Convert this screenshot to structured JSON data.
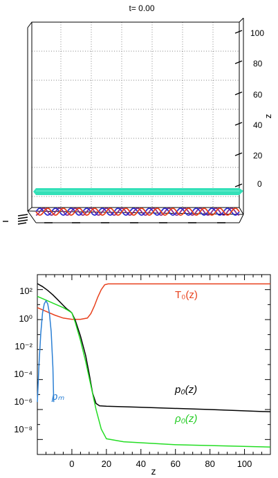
{
  "top_panel": {
    "time_label": "t=   0.00",
    "z_axis_label": "z",
    "z_ticks": [
      "0",
      "20",
      "40",
      "60",
      "80",
      "100"
    ],
    "colors": {
      "slab": "#33e0b8",
      "helix_red": "#e8401c",
      "helix_blue": "#3030d0",
      "helix_purple": "#8a2a8a"
    }
  },
  "chart_data": {
    "type": "line",
    "xlabel": "z",
    "xlim": [
      -20,
      115
    ],
    "ylim_log10": [
      -9,
      3
    ],
    "yscale": "log",
    "x_ticks": [
      0,
      20,
      40,
      60,
      80,
      100
    ],
    "x_tick_labels": [
      "0",
      "20",
      "40",
      "60",
      "80",
      "100"
    ],
    "y_ticks_log10": [
      2,
      0,
      -2,
      -4,
      -6,
      -8
    ],
    "y_tick_labels": [
      "10²",
      "10⁰",
      "10⁻²",
      "10⁻⁴",
      "10⁻⁶",
      "10⁻⁸"
    ],
    "series": [
      {
        "name": "T₀(z)",
        "color": "#e8401c",
        "x": [
          -20,
          -15,
          -10,
          -5,
          0,
          5,
          9,
          11,
          13,
          15,
          17,
          19,
          21,
          30,
          60,
          115
        ],
        "log10_y": [
          0.8,
          0.55,
          0.3,
          0.1,
          0.02,
          0.02,
          0.1,
          0.4,
          0.9,
          1.5,
          2.0,
          2.32,
          2.38,
          2.38,
          2.38,
          2.38
        ]
      },
      {
        "name": "p₀(z)",
        "color": "#000000",
        "x": [
          -20,
          -17,
          -14,
          -11,
          -8,
          -5,
          -3,
          -1,
          0,
          2,
          5,
          8,
          10,
          12,
          14,
          16,
          20,
          40,
          80,
          115
        ],
        "log10_y": [
          2.4,
          2.2,
          1.95,
          1.65,
          1.3,
          0.95,
          0.72,
          0.55,
          0.45,
          -0.05,
          -1.1,
          -2.4,
          -3.6,
          -4.9,
          -5.6,
          -5.75,
          -5.78,
          -5.85,
          -6.0,
          -6.15
        ]
      },
      {
        "name": "ρ₀(z)",
        "color": "#22dd22",
        "x": [
          -20,
          -15,
          -10,
          -5,
          -2,
          0,
          2,
          5,
          8,
          11,
          14,
          17,
          20,
          30,
          60,
          115
        ],
        "log10_y": [
          1.55,
          1.3,
          1.05,
          0.8,
          0.6,
          0.45,
          -0.2,
          -1.4,
          -2.8,
          -4.4,
          -6.0,
          -7.3,
          -7.95,
          -8.15,
          -8.35,
          -8.5
        ]
      },
      {
        "name": "pₘ",
        "color": "#2a7fd4",
        "x": [
          -20,
          -19,
          -18,
          -17,
          -16,
          -15,
          -14,
          -13,
          -12,
          -11,
          -10.5
        ],
        "log10_y": [
          -5.5,
          -2.9,
          -0.9,
          0.45,
          1.05,
          1.25,
          1.05,
          0.4,
          -0.8,
          -3.2,
          -5.5
        ]
      }
    ]
  }
}
